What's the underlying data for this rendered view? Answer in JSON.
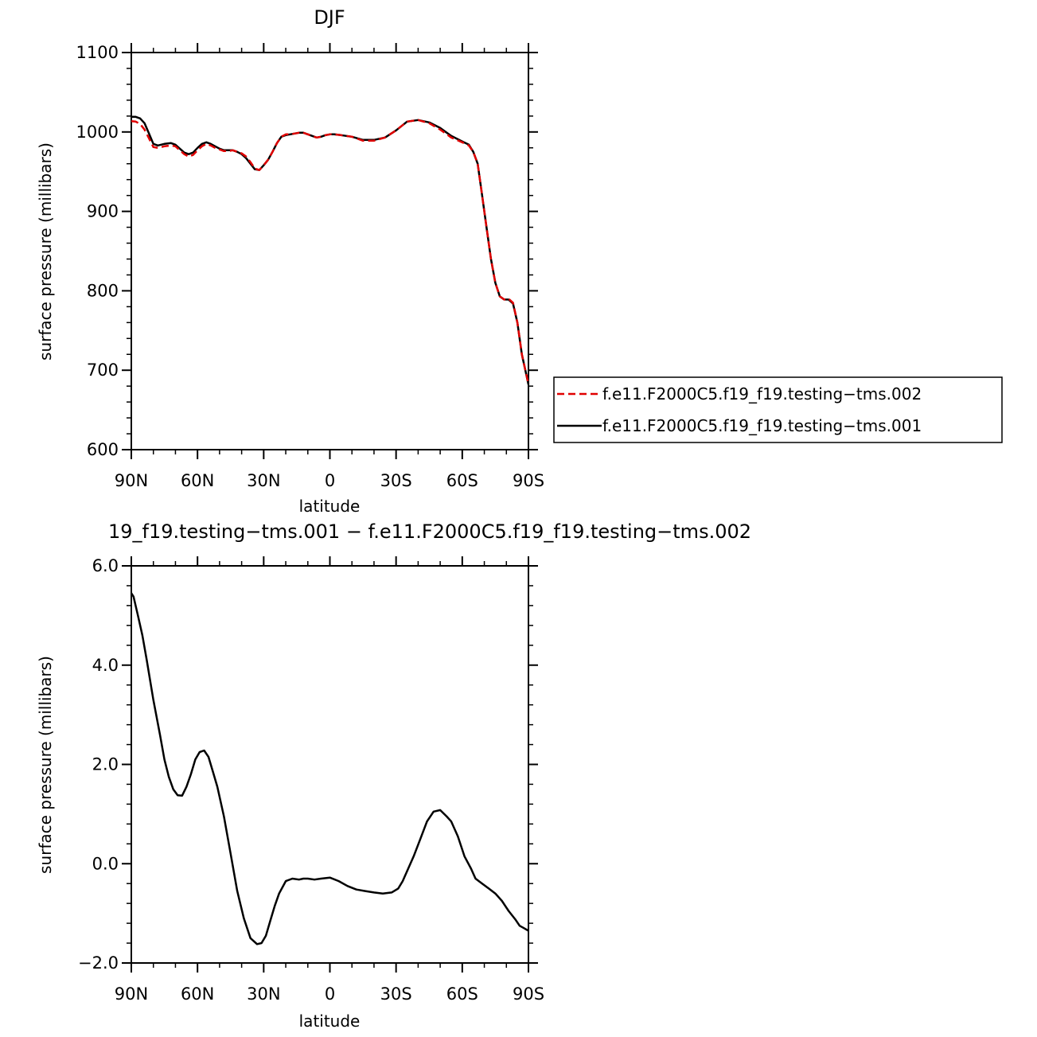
{
  "chart_data": [
    {
      "type": "line",
      "title": "DJF",
      "xlabel": "latitude",
      "ylabel": "surface pressure (millibars)",
      "xlim": [
        90,
        -90
      ],
      "ylim": [
        600,
        1100
      ],
      "xticks": [
        {
          "value": 90,
          "label": "90N"
        },
        {
          "value": 60,
          "label": "60N"
        },
        {
          "value": 30,
          "label": "30N"
        },
        {
          "value": 0,
          "label": "0"
        },
        {
          "value": -30,
          "label": "30S"
        },
        {
          "value": -60,
          "label": "60S"
        },
        {
          "value": -90,
          "label": "90S"
        }
      ],
      "yticks": [
        {
          "value": 600,
          "label": "600"
        },
        {
          "value": 700,
          "label": "700"
        },
        {
          "value": 800,
          "label": "800"
        },
        {
          "value": 900,
          "label": "900"
        },
        {
          "value": 1000,
          "label": "1000"
        },
        {
          "value": 1100,
          "label": "1100"
        }
      ],
      "legend_position": "right",
      "series": [
        {
          "name": "f.e11.F2000C5.f19_f19.testing−tms.002",
          "color": "#e00000",
          "dash": "dashed",
          "x": [
            90,
            88,
            86,
            84,
            82,
            80,
            78,
            75,
            72,
            70,
            68,
            66,
            64,
            62,
            60,
            58,
            56,
            54,
            52,
            50,
            48,
            46,
            44,
            42,
            40,
            38,
            36,
            34,
            32,
            30,
            28,
            26,
            24,
            22,
            20,
            18,
            16,
            14,
            12,
            10,
            8,
            6,
            4,
            2,
            0,
            -2,
            -5,
            -10,
            -15,
            -20,
            -25,
            -30,
            -35,
            -40,
            -45,
            -50,
            -55,
            -60,
            -63,
            -65,
            -67,
            -69,
            -71,
            -73,
            -75,
            -77,
            -79,
            -81,
            -83,
            -85,
            -87,
            -89,
            -90
          ],
          "values": [
            1013.5,
            1013,
            1010,
            1003,
            992,
            981,
            980,
            982,
            983,
            982,
            977,
            972,
            969,
            971,
            977,
            982,
            985,
            983,
            980,
            978,
            976,
            976,
            977,
            975,
            973,
            969,
            962,
            954,
            952,
            958,
            965,
            975,
            986,
            994,
            997,
            997,
            998,
            999,
            999,
            997,
            995,
            993,
            994,
            996,
            997,
            997,
            996,
            994,
            989,
            989,
            993,
            1002,
            1013,
            1015,
            1011,
            1003,
            993,
            987,
            983,
            975,
            960,
            920,
            880,
            840,
            810,
            793,
            789,
            790,
            785,
            760,
            720,
            695,
            683
          ]
        },
        {
          "name": "f.e11.F2000C5.f19_f19.testing−tms.001",
          "color": "#000000",
          "dash": "solid",
          "x": [
            90,
            88,
            86,
            84,
            82,
            80,
            78,
            75,
            72,
            70,
            68,
            66,
            64,
            62,
            60,
            58,
            56,
            54,
            52,
            50,
            48,
            46,
            44,
            42,
            40,
            38,
            36,
            34,
            32,
            30,
            28,
            26,
            24,
            22,
            20,
            18,
            16,
            14,
            12,
            10,
            8,
            6,
            4,
            2,
            0,
            -2,
            -5,
            -10,
            -15,
            -20,
            -25,
            -30,
            -35,
            -40,
            -45,
            -50,
            -55,
            -60,
            -63,
            -65,
            -67,
            -69,
            -71,
            -73,
            -75,
            -77,
            -79,
            -81,
            -83,
            -85,
            -87,
            -89,
            -90
          ],
          "values": [
            1019,
            1019,
            1017,
            1011,
            998,
            985,
            983,
            985,
            986,
            984,
            979,
            974,
            972,
            974,
            980,
            985,
            987,
            985,
            982,
            979,
            977,
            977,
            977,
            975,
            972,
            967,
            960,
            953,
            952,
            958,
            965,
            975,
            986,
            994,
            996,
            997,
            998,
            999,
            999,
            997,
            995,
            993,
            994,
            996,
            997,
            997,
            996,
            994,
            990,
            990,
            993,
            1002,
            1013,
            1015,
            1012,
            1005,
            995,
            988,
            984,
            975,
            960,
            920,
            880,
            840,
            810,
            793,
            789,
            789,
            784,
            760,
            720,
            695,
            682
          ]
        }
      ]
    },
    {
      "type": "line",
      "title": "19_f19.testing−tms.001 − f.e11.F2000C5.f19_f19.testing−tms.002",
      "xlabel": "latitude",
      "ylabel": "surface pressure (millibars)",
      "xlim": [
        90,
        -90
      ],
      "ylim": [
        -2.0,
        6.0
      ],
      "xticks": [
        {
          "value": 90,
          "label": "90N"
        },
        {
          "value": 60,
          "label": "60N"
        },
        {
          "value": 30,
          "label": "30N"
        },
        {
          "value": 0,
          "label": "0"
        },
        {
          "value": -30,
          "label": "30S"
        },
        {
          "value": -60,
          "label": "60S"
        },
        {
          "value": -90,
          "label": "90S"
        }
      ],
      "yticks": [
        {
          "value": -2.0,
          "label": "−2.0"
        },
        {
          "value": 0.0,
          "label": "0.0"
        },
        {
          "value": 2.0,
          "label": "2.0"
        },
        {
          "value": 4.0,
          "label": "4.0"
        },
        {
          "value": 6.0,
          "label": "6.0"
        }
      ],
      "series": [
        {
          "color": "#000000",
          "dash": "solid",
          "x": [
            90,
            89,
            87,
            85,
            83,
            80,
            77,
            75,
            73,
            71,
            69,
            67,
            65,
            63,
            61,
            59,
            57,
            55,
            53,
            51,
            48,
            45,
            42,
            39,
            36,
            33,
            31,
            29,
            27,
            25,
            23,
            20,
            17,
            14,
            12,
            10,
            7,
            4,
            0,
            -4,
            -8,
            -12,
            -16,
            -20,
            -24,
            -28,
            -31,
            -33,
            -35,
            -38,
            -41,
            -44,
            -47,
            -50,
            -53,
            -55,
            -58,
            -61,
            -64,
            -66,
            -69,
            -72,
            -75,
            -78,
            -81,
            -84,
            -86,
            -88,
            -90
          ],
          "values": [
            5.45,
            5.38,
            5.0,
            4.6,
            4.1,
            3.3,
            2.6,
            2.1,
            1.75,
            1.5,
            1.38,
            1.37,
            1.55,
            1.8,
            2.1,
            2.25,
            2.28,
            2.15,
            1.85,
            1.55,
            0.95,
            0.2,
            -0.55,
            -1.1,
            -1.5,
            -1.62,
            -1.6,
            -1.45,
            -1.15,
            -0.85,
            -0.6,
            -0.35,
            -0.3,
            -0.32,
            -0.3,
            -0.3,
            -0.32,
            -0.3,
            -0.28,
            -0.35,
            -0.45,
            -0.52,
            -0.55,
            -0.58,
            -0.6,
            -0.58,
            -0.5,
            -0.35,
            -0.15,
            0.15,
            0.5,
            0.85,
            1.05,
            1.08,
            0.95,
            0.85,
            0.55,
            0.15,
            -0.1,
            -0.3,
            -0.4,
            -0.5,
            -0.6,
            -0.75,
            -0.95,
            -1.12,
            -1.25,
            -1.3,
            -1.35
          ]
        }
      ]
    }
  ]
}
